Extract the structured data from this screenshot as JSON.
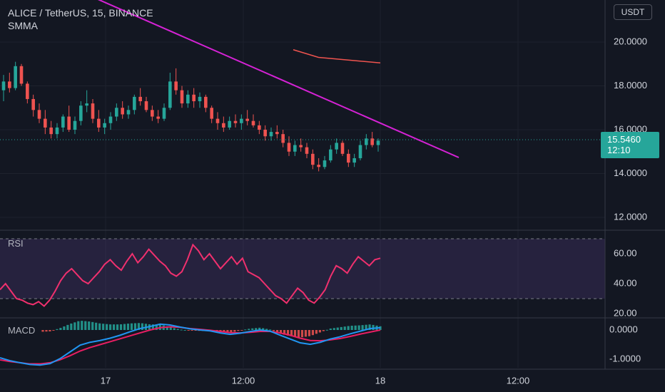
{
  "header": {
    "symbol_line": "ALICE / TetherUS, 15, BINANCE",
    "indicator": "SMMA"
  },
  "currency_button": "USDT",
  "last_price": {
    "value": "15.5460",
    "countdown": "12:10"
  },
  "panes": {
    "rsi_label": "RSI",
    "macd_label": "MACD"
  },
  "colors": {
    "background": "#131722",
    "up": "#26a69a",
    "down": "#ef5350",
    "trendline": "#d522d5",
    "smma": "#f0544f",
    "rsi": "#f0306e",
    "macd": "#2196f3",
    "signal": "#e91e63"
  },
  "chart_data": [
    {
      "type": "candlestick",
      "yticks": [
        "20.0000",
        "18.0000",
        "16.0000",
        "14.0000",
        "12.0000"
      ],
      "xticks": [
        "17",
        "12:00",
        "18",
        "12:00"
      ],
      "ylim": [
        11.6,
        21.3
      ],
      "ohlc": [
        [
          17.8,
          18.5,
          17.3,
          18.2
        ],
        [
          18.2,
          18.6,
          17.7,
          17.9
        ],
        [
          17.9,
          19.1,
          17.8,
          18.9
        ],
        [
          18.9,
          19.0,
          18.0,
          18.1
        ],
        [
          18.1,
          18.2,
          17.2,
          17.4
        ],
        [
          17.4,
          17.6,
          16.6,
          16.9
        ],
        [
          16.9,
          17.2,
          16.3,
          16.5
        ],
        [
          16.5,
          16.9,
          15.8,
          16.1
        ],
        [
          16.1,
          16.4,
          15.6,
          15.8
        ],
        [
          15.8,
          16.3,
          15.6,
          16.1
        ],
        [
          16.1,
          16.7,
          15.9,
          16.6
        ],
        [
          16.6,
          17.1,
          15.9,
          16.0
        ],
        [
          16.0,
          16.6,
          15.8,
          16.4
        ],
        [
          16.4,
          17.3,
          16.2,
          17.1
        ],
        [
          17.1,
          17.8,
          16.8,
          17.2
        ],
        [
          17.2,
          17.4,
          16.3,
          16.5
        ],
        [
          16.5,
          16.9,
          15.9,
          16.1
        ],
        [
          16.1,
          16.5,
          15.8,
          16.3
        ],
        [
          16.3,
          16.8,
          16.0,
          16.6
        ],
        [
          16.6,
          17.2,
          16.4,
          17.0
        ],
        [
          17.0,
          17.3,
          16.5,
          16.7
        ],
        [
          16.7,
          17.1,
          16.5,
          16.9
        ],
        [
          16.9,
          17.6,
          16.7,
          17.5
        ],
        [
          17.5,
          17.9,
          17.1,
          17.3
        ],
        [
          17.3,
          17.5,
          16.8,
          16.9
        ],
        [
          16.9,
          17.1,
          16.4,
          16.6
        ],
        [
          16.6,
          16.9,
          16.3,
          16.5
        ],
        [
          16.5,
          17.2,
          16.4,
          17.0
        ],
        [
          17.0,
          18.6,
          16.9,
          18.2
        ],
        [
          18.2,
          18.8,
          17.6,
          17.8
        ],
        [
          17.8,
          18.0,
          17.0,
          17.2
        ],
        [
          17.2,
          17.8,
          17.0,
          17.6
        ],
        [
          17.6,
          17.9,
          17.0,
          17.3
        ],
        [
          17.3,
          17.7,
          17.0,
          17.5
        ],
        [
          17.5,
          17.6,
          16.8,
          17.0
        ],
        [
          17.0,
          17.1,
          16.3,
          16.5
        ],
        [
          16.5,
          16.8,
          16.0,
          16.3
        ],
        [
          16.3,
          16.6,
          15.9,
          16.1
        ],
        [
          16.1,
          16.6,
          16.0,
          16.4
        ],
        [
          16.4,
          16.7,
          16.1,
          16.3
        ],
        [
          16.3,
          16.7,
          16.0,
          16.5
        ],
        [
          16.5,
          16.9,
          16.2,
          16.4
        ],
        [
          16.4,
          16.7,
          16.1,
          16.2
        ],
        [
          16.2,
          16.4,
          15.8,
          16.0
        ],
        [
          16.0,
          16.2,
          15.5,
          15.7
        ],
        [
          15.7,
          16.1,
          15.5,
          15.9
        ],
        [
          15.9,
          16.2,
          15.6,
          15.8
        ],
        [
          15.8,
          16.0,
          15.2,
          15.4
        ],
        [
          15.4,
          15.7,
          14.8,
          15.0
        ],
        [
          15.0,
          15.5,
          14.8,
          15.3
        ],
        [
          15.3,
          15.6,
          15.0,
          15.2
        ],
        [
          15.2,
          15.4,
          14.7,
          14.9
        ],
        [
          14.9,
          15.1,
          14.2,
          14.4
        ],
        [
          14.4,
          14.7,
          14.1,
          14.3
        ],
        [
          14.3,
          14.8,
          14.2,
          14.6
        ],
        [
          14.6,
          15.3,
          14.5,
          15.1
        ],
        [
          15.1,
          15.6,
          14.9,
          15.4
        ],
        [
          15.4,
          15.5,
          14.8,
          14.9
        ],
        [
          14.9,
          15.1,
          14.3,
          14.5
        ],
        [
          14.5,
          14.9,
          14.3,
          14.7
        ],
        [
          14.7,
          15.5,
          14.6,
          15.3
        ],
        [
          15.3,
          15.8,
          15.1,
          15.6
        ],
        [
          15.6,
          15.9,
          15.2,
          15.3
        ],
        [
          15.3,
          15.6,
          15.0,
          15.5
        ]
      ],
      "trendline": {
        "from": [
          "14:00 (16)",
          21.8
        ],
        "to": [
          "06:00 (18)",
          14.7
        ]
      },
      "smma": [
        [
          0.0,
          19.65
        ],
        [
          0.29,
          19.3
        ],
        [
          1.0,
          19.05
        ]
      ]
    },
    {
      "type": "line",
      "name": "RSI",
      "yticks": [
        "60.00",
        "40.00",
        "20.00"
      ],
      "ylim": [
        18,
        73
      ],
      "bands": [
        70,
        30
      ],
      "values": [
        36,
        40,
        35,
        30,
        29,
        27,
        26,
        28,
        25,
        29,
        35,
        42,
        47,
        50,
        46,
        42,
        40,
        44,
        48,
        53,
        56,
        52,
        49,
        55,
        60,
        54,
        58,
        63,
        59,
        55,
        52,
        47,
        45,
        48,
        56,
        66,
        62,
        56,
        60,
        55,
        50,
        54,
        58,
        53,
        57,
        48,
        46,
        44,
        40,
        36,
        32,
        30,
        27,
        32,
        37,
        34,
        29,
        27,
        31,
        36,
        45,
        52,
        50,
        47,
        53,
        58,
        55,
        52,
        56,
        57
      ]
    },
    {
      "type": "line",
      "name": "MACD",
      "yticks": [
        "0.0000",
        "-1.0000"
      ],
      "ylim": [
        -1.5,
        0.45
      ],
      "series": [
        {
          "values": [
            -0.95,
            -1.05,
            -1.12,
            -1.18,
            -1.2,
            -1.15,
            -0.98,
            -0.75,
            -0.52,
            -0.42,
            -0.36,
            -0.28,
            -0.18,
            -0.06,
            0.05,
            0.12,
            0.2,
            0.17,
            0.1,
            0.04,
            0.0,
            -0.03,
            -0.1,
            -0.15,
            -0.11,
            -0.05,
            0.0,
            -0.04,
            -0.18,
            -0.31,
            -0.44,
            -0.49,
            -0.42,
            -0.31,
            -0.23,
            -0.13,
            -0.04,
            0.05,
            0.08
          ]
        },
        {
          "values": [
            -1.02,
            -1.08,
            -1.12,
            -1.16,
            -1.16,
            -1.12,
            -1.02,
            -0.88,
            -0.72,
            -0.6,
            -0.5,
            -0.4,
            -0.3,
            -0.2,
            -0.1,
            0.0,
            0.08,
            0.11,
            0.09,
            0.05,
            0.02,
            -0.01,
            -0.05,
            -0.09,
            -0.1,
            -0.08,
            -0.05,
            -0.05,
            -0.1,
            -0.18,
            -0.28,
            -0.36,
            -0.37,
            -0.34,
            -0.29,
            -0.22,
            -0.14,
            -0.07,
            0.0
          ]
        }
      ]
    }
  ]
}
